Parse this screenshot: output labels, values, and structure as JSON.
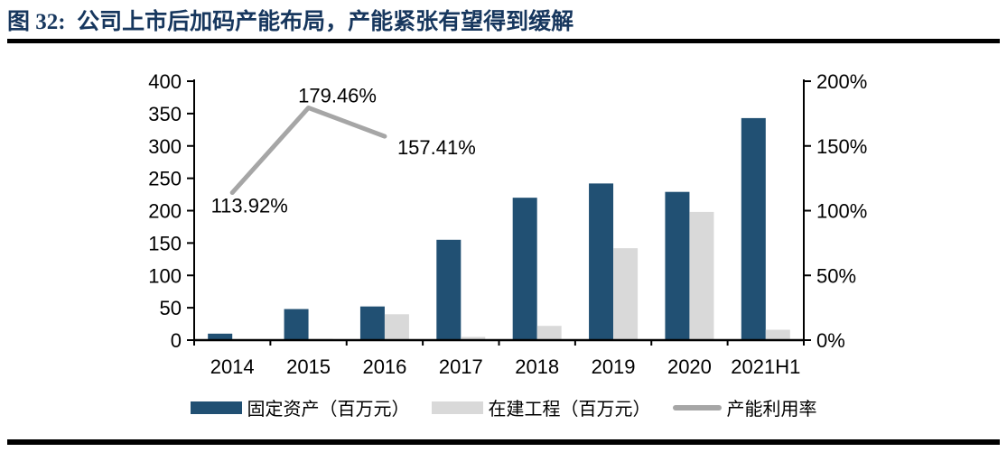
{
  "figure": {
    "title": "图 32:  公司上市后加码产能布局，产能紧张有望得到缓解"
  },
  "chart_data": {
    "type": "bar",
    "subtype": "grouped bars with overlay line, dual y-axis",
    "categories": [
      "2014",
      "2015",
      "2016",
      "2017",
      "2018",
      "2019",
      "2020",
      "2021H1"
    ],
    "series": [
      {
        "key": "fixed-assets",
        "name": "固定资产（百万元）",
        "type": "bar",
        "axis": "left",
        "color": "#215073",
        "values": [
          10,
          48,
          52,
          155,
          220,
          242,
          229,
          343
        ]
      },
      {
        "key": "construction-in-progress",
        "name": "在建工程（百万元）",
        "type": "bar",
        "axis": "left",
        "color": "#D9D9D9",
        "values": [
          0,
          2,
          40,
          5,
          22,
          142,
          198,
          16
        ]
      },
      {
        "key": "capacity-utilization",
        "name": "产能利用率",
        "type": "line",
        "axis": "right",
        "color": "#A6A6A6",
        "values": [
          113.92,
          179.46,
          157.41,
          null,
          null,
          null,
          null,
          null
        ],
        "point_labels": [
          "113.92%",
          "179.46%",
          "157.41%",
          "",
          "",
          "",
          "",
          ""
        ]
      }
    ],
    "left_axis": {
      "min": 0,
      "max": 400,
      "tick_labels": [
        "0",
        "50",
        "100",
        "150",
        "200",
        "250",
        "300",
        "350",
        "400"
      ]
    },
    "right_axis": {
      "min": 0,
      "max": 200,
      "tick_labels": [
        "0%",
        "50%",
        "100%",
        "150%",
        "200%"
      ]
    },
    "grid": false,
    "legend_position": "bottom",
    "colors": {
      "title": "#17375E",
      "axis": "#000000",
      "rule": "#000000"
    }
  }
}
